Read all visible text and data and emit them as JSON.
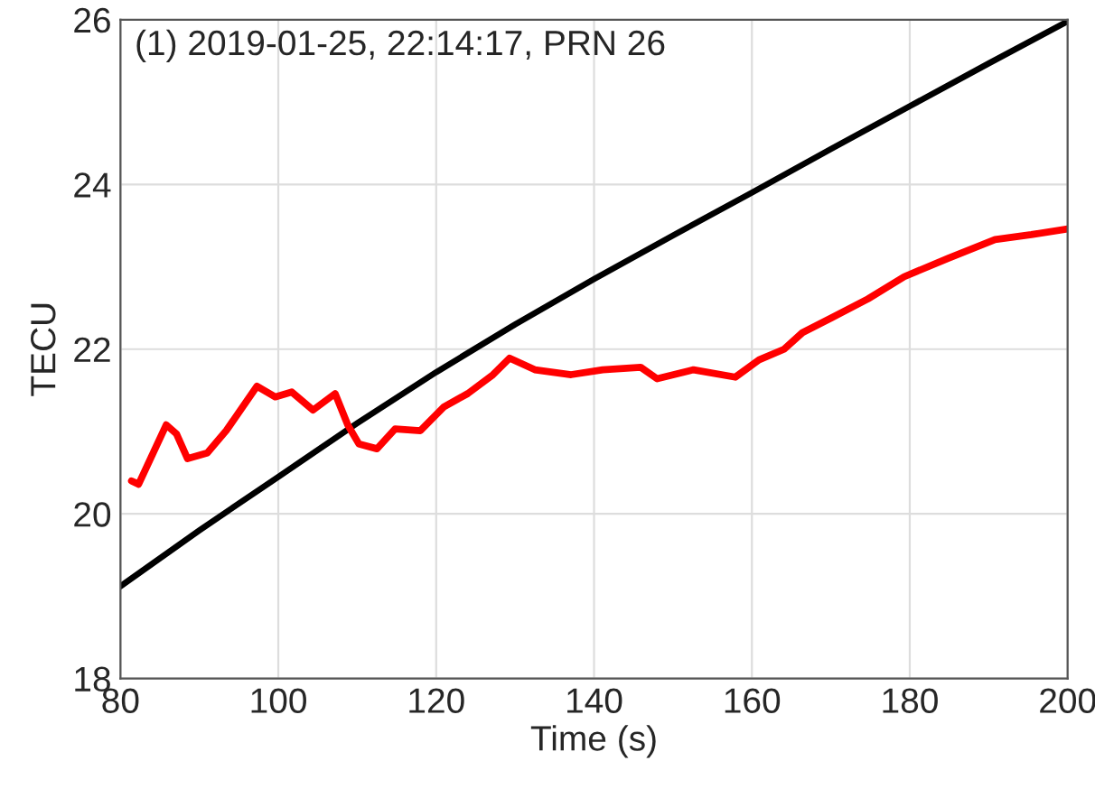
{
  "chart_data": {
    "type": "line",
    "xlabel": "Time (s)",
    "ylabel": "TECU",
    "annotations": [
      "(1) 2019-01-25, 22:14:17, PRN 26"
    ],
    "xlim": [
      80,
      200
    ],
    "xticks": [
      80,
      100,
      120,
      140,
      160,
      180,
      200
    ],
    "ylim": [
      18,
      26
    ],
    "yticks": [
      18,
      20,
      22,
      24,
      26
    ],
    "grid": true,
    "marker": "none",
    "line_style": "solid",
    "series": [
      {
        "color": "#000000",
        "x": [
          80,
          90,
          100,
          110,
          120,
          130,
          140,
          150,
          160,
          170,
          180,
          190,
          200
        ],
        "values": [
          19.12,
          19.8,
          20.45,
          21.1,
          21.72,
          22.3,
          22.85,
          23.38,
          23.9,
          24.43,
          24.95,
          25.47,
          25.98
        ]
      },
      {
        "color": "#ff0000",
        "x": [
          81.4,
          82.3,
          85.8,
          87.1,
          88.5,
          91,
          93.4,
          97.3,
          99.6,
          101.7,
          104.4,
          107.2,
          108.8,
          110.2,
          112.5,
          114.8,
          118,
          121,
          124,
          127.2,
          129.3,
          132.5,
          137.1,
          141.1,
          145.9,
          148,
          152.6,
          157.9,
          160.9,
          164.1,
          166.4,
          170.1,
          174.7,
          179.3,
          184.8,
          190.8,
          195.4,
          200
        ],
        "values": [
          20.4,
          20.36,
          21.08,
          20.97,
          20.67,
          20.74,
          21.01,
          21.55,
          21.42,
          21.48,
          21.26,
          21.46,
          21.08,
          20.85,
          20.79,
          21.03,
          21.01,
          21.3,
          21.46,
          21.69,
          21.89,
          21.75,
          21.69,
          21.75,
          21.78,
          21.64,
          21.75,
          21.66,
          21.87,
          22.0,
          22.2,
          22.38,
          22.61,
          22.88,
          23.1,
          23.33,
          23.39,
          23.46
        ]
      }
    ]
  }
}
